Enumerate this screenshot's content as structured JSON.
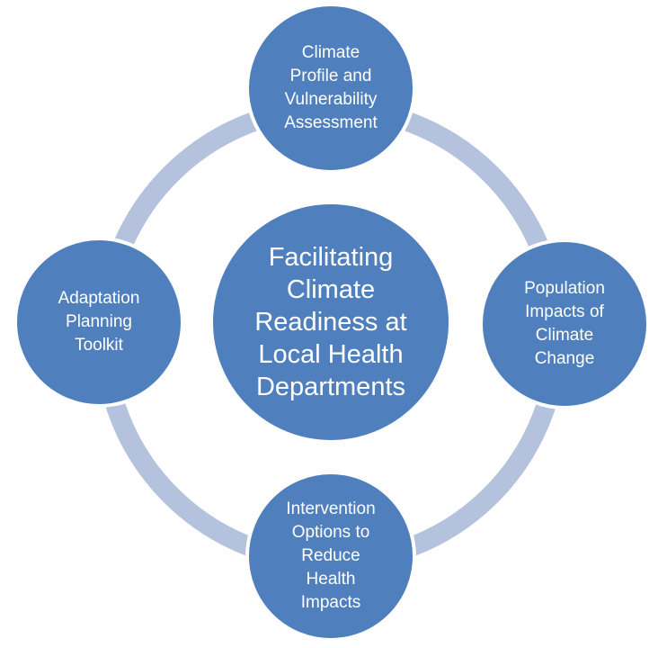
{
  "diagram": {
    "center": {
      "label": "Facilitating\nClimate\nReadiness at\nLocal Health\nDepartments"
    },
    "top": {
      "label": "Climate\nProfile and\nVulnerability\nAssessment"
    },
    "right": {
      "label": "Population\nImpacts of\nClimate\nChange"
    },
    "bottom": {
      "label": "Intervention\nOptions to\nReduce\nHealth\nImpacts"
    },
    "left": {
      "label": "Adaptation\nPlanning\nToolkit"
    }
  },
  "colors": {
    "ring": "#b4c2de",
    "node_fill": "#4f80bd",
    "node_stroke": "#ffffff",
    "text": "#ffffff"
  }
}
